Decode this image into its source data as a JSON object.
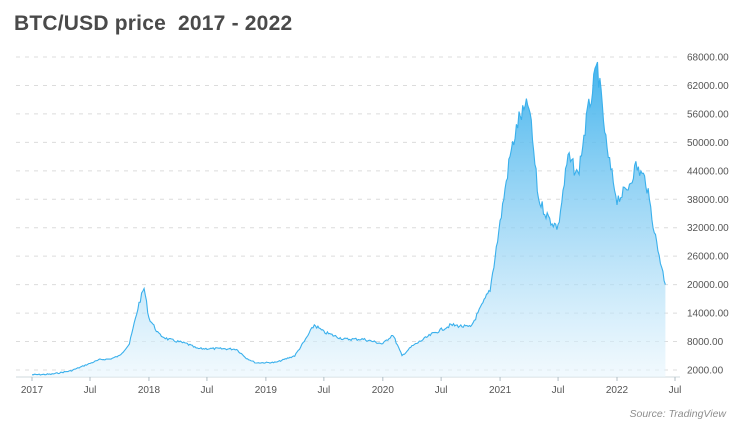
{
  "chart_data": {
    "type": "area",
    "title": "BTC/USD price  2017 - 2022",
    "xlabel": "",
    "ylabel": "",
    "source": "Source: TradingView",
    "y_axis_position": "right",
    "grid": "horizontal dashed",
    "y_ticks": [
      "2000.00",
      "8000.00",
      "14000.00",
      "20000.00",
      "26000.00",
      "32000.00",
      "38000.00",
      "44000.00",
      "50000.00",
      "56000.00",
      "62000.00",
      "68000.00"
    ],
    "x_ticks": [
      "2017",
      "Jul",
      "2018",
      "Jul",
      "2019",
      "Jul",
      "2020",
      "Jul",
      "2021",
      "Jul",
      "2022",
      "Jul"
    ],
    "color": "#3ab0ec",
    "series": [
      {
        "x": [
          "2017-01",
          "2017-03",
          "2017-05",
          "2017-06",
          "2017-08",
          "2017-09",
          "2017-10",
          "2017-11",
          "2017-12",
          "2017-12-17",
          "2018-01",
          "2018-02",
          "2018-03",
          "2018-04",
          "2018-05",
          "2018-06",
          "2018-08",
          "2018-10",
          "2018-11",
          "2018-12",
          "2019-02",
          "2019-04",
          "2019-05",
          "2019-06",
          "2019-07",
          "2019-09",
          "2019-11",
          "2020-01",
          "2020-02",
          "2020-03",
          "2020-04",
          "2020-06",
          "2020-08",
          "2020-10",
          "2020-11",
          "2020-12",
          "2021-01",
          "2021-02",
          "2021-03",
          "2021-04",
          "2021-05",
          "2021-06",
          "2021-07",
          "2021-08",
          "2021-09",
          "2021-10",
          "2021-11",
          "2021-12",
          "2022-01",
          "2022-02",
          "2022-03",
          "2022-04",
          "2022-05",
          "2022-06"
        ],
        "values": [
          1000,
          1100,
          1800,
          2600,
          4200,
          4300,
          5000,
          7500,
          16000,
          19300,
          13000,
          9500,
          8500,
          8000,
          7500,
          6500,
          6500,
          6400,
          4500,
          3500,
          3600,
          5000,
          8000,
          11500,
          10000,
          8500,
          8500,
          7500,
          9500,
          5000,
          7000,
          9500,
          11500,
          11000,
          15000,
          19000,
          33000,
          47000,
          55000,
          58000,
          38000,
          34000,
          32000,
          47000,
          43000,
          56000,
          66000,
          48000,
          38000,
          40000,
          45000,
          42000,
          30000,
          20000
        ]
      }
    ]
  }
}
